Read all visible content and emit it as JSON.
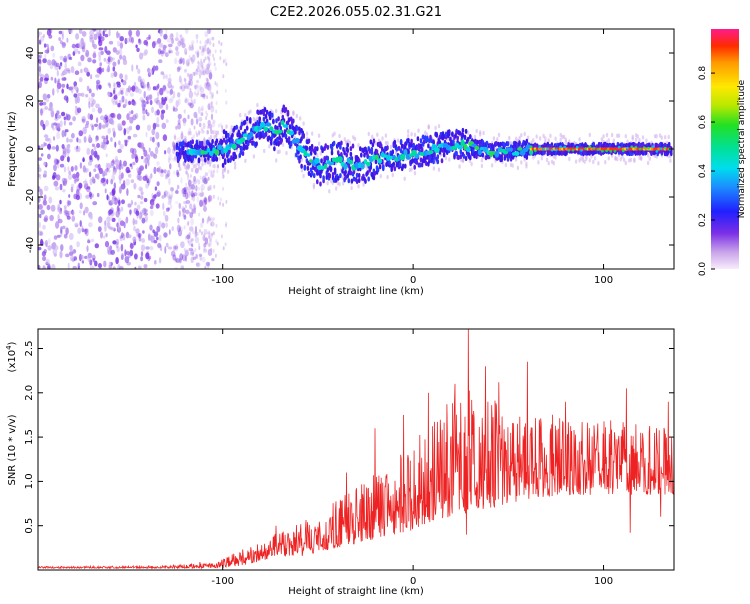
{
  "title": "C2E2.2026.055.02.31.G21",
  "colors": {
    "snr_line": "#ee2222",
    "axis": "#000000"
  },
  "chart_data": [
    {
      "type": "heatmap",
      "name": "spectrogram",
      "xlabel": "Height of straight line (km)",
      "ylabel": "Frequency (Hz)",
      "xlim": [
        -197,
        137
      ],
      "ylim": [
        -50,
        50
      ],
      "x_ticks": [
        -100,
        0,
        100
      ],
      "x_tick_labels": [
        "-100",
        "0",
        "100"
      ],
      "y_ticks": [
        -40,
        -20,
        0,
        20,
        40
      ],
      "y_tick_labels": [
        "-40",
        "-20",
        "0",
        "20",
        "40"
      ],
      "noise_region": {
        "x_from": -197,
        "x_to": -105,
        "y_from": -50,
        "y_to": 50
      },
      "ridge_line": [
        {
          "x": -122,
          "y": -1
        },
        {
          "x": -110,
          "y": -1
        },
        {
          "x": -100,
          "y": 0
        },
        {
          "x": -92,
          "y": 3
        },
        {
          "x": -85,
          "y": 7
        },
        {
          "x": -78,
          "y": 10
        },
        {
          "x": -72,
          "y": 6
        },
        {
          "x": -68,
          "y": 11
        },
        {
          "x": -62,
          "y": 4
        },
        {
          "x": -55,
          "y": -3
        },
        {
          "x": -48,
          "y": -7
        },
        {
          "x": -40,
          "y": -5
        },
        {
          "x": -30,
          "y": -7
        },
        {
          "x": -20,
          "y": -4
        },
        {
          "x": -10,
          "y": -3
        },
        {
          "x": 0,
          "y": -2
        },
        {
          "x": 10,
          "y": 0
        },
        {
          "x": 25,
          "y": 2
        },
        {
          "x": 40,
          "y": -1
        },
        {
          "x": 50,
          "y": -1
        },
        {
          "x": 60,
          "y": 0
        },
        {
          "x": 137,
          "y": 0
        }
      ],
      "strong_band": {
        "x_from": 62,
        "x_to": 135,
        "y": 0
      },
      "colorbar": {
        "label": "Normalized spectral amplitude",
        "ticks": [
          0.0,
          0.2,
          0.4,
          0.6,
          0.8
        ],
        "tick_labels": [
          "0.0",
          "0.2",
          "0.4",
          "0.6",
          "0.8"
        ],
        "range": [
          0,
          0.98
        ]
      }
    },
    {
      "type": "line",
      "name": "snr",
      "xlabel": "Height of straight line (km)",
      "ylabel": "SNR (10 * v/v)",
      "scale_label": "(x10",
      "scale_exponent": "4",
      "scale_close": ")",
      "xlim": [
        -197,
        137
      ],
      "ylim": [
        0,
        2.72
      ],
      "x_ticks": [
        -100,
        0,
        100
      ],
      "x_tick_labels": [
        "-100",
        "0",
        "100"
      ],
      "y_ticks": [
        0.5,
        1.0,
        1.5,
        2.0,
        2.5
      ],
      "y_tick_labels": [
        "0.5",
        "1.0",
        "1.5",
        "2.0",
        "2.5"
      ],
      "envelope": [
        {
          "x": -197,
          "low": 0.02,
          "high": 0.04
        },
        {
          "x": -130,
          "low": 0.02,
          "high": 0.05
        },
        {
          "x": -110,
          "low": 0.02,
          "high": 0.08
        },
        {
          "x": -100,
          "low": 0.03,
          "high": 0.12
        },
        {
          "x": -90,
          "low": 0.05,
          "high": 0.25
        },
        {
          "x": -80,
          "low": 0.1,
          "high": 0.3
        },
        {
          "x": -70,
          "low": 0.15,
          "high": 0.45
        },
        {
          "x": -60,
          "low": 0.15,
          "high": 0.55
        },
        {
          "x": -50,
          "low": 0.2,
          "high": 0.65
        },
        {
          "x": -40,
          "low": 0.25,
          "high": 0.8
        },
        {
          "x": -30,
          "low": 0.3,
          "high": 0.95
        },
        {
          "x": -20,
          "low": 0.35,
          "high": 1.1
        },
        {
          "x": -10,
          "low": 0.4,
          "high": 1.25
        },
        {
          "x": 0,
          "low": 0.45,
          "high": 1.45
        },
        {
          "x": 10,
          "low": 0.55,
          "high": 1.7
        },
        {
          "x": 20,
          "low": 0.6,
          "high": 1.95
        },
        {
          "x": 30,
          "low": 0.65,
          "high": 2.05
        },
        {
          "x": 40,
          "low": 0.7,
          "high": 1.95
        },
        {
          "x": 50,
          "low": 0.75,
          "high": 1.85
        },
        {
          "x": 60,
          "low": 0.8,
          "high": 1.8
        },
        {
          "x": 80,
          "low": 0.85,
          "high": 1.75
        },
        {
          "x": 100,
          "low": 0.85,
          "high": 1.7
        },
        {
          "x": 120,
          "low": 0.85,
          "high": 1.65
        },
        {
          "x": 137,
          "low": 0.85,
          "high": 1.6
        }
      ],
      "peaks": [
        {
          "x": -112,
          "y": 0.09
        },
        {
          "x": -72,
          "y": 0.5
        },
        {
          "x": -35,
          "y": 1.1
        },
        {
          "x": -20,
          "y": 1.6
        },
        {
          "x": -5,
          "y": 1.75
        },
        {
          "x": 8,
          "y": 2.0
        },
        {
          "x": 22,
          "y": 2.1
        },
        {
          "x": 29,
          "y": 2.72
        },
        {
          "x": 38,
          "y": 2.3
        },
        {
          "x": 45,
          "y": 2.12
        },
        {
          "x": 60,
          "y": 2.35
        },
        {
          "x": 80,
          "y": 1.9
        },
        {
          "x": 112,
          "y": 2.05
        },
        {
          "x": 124,
          "y": 1.55
        },
        {
          "x": 134,
          "y": 1.9
        }
      ],
      "dips": [
        {
          "x": 28,
          "y": 0.4
        },
        {
          "x": 114,
          "y": 0.42
        },
        {
          "x": 130,
          "y": 0.6
        }
      ]
    }
  ]
}
